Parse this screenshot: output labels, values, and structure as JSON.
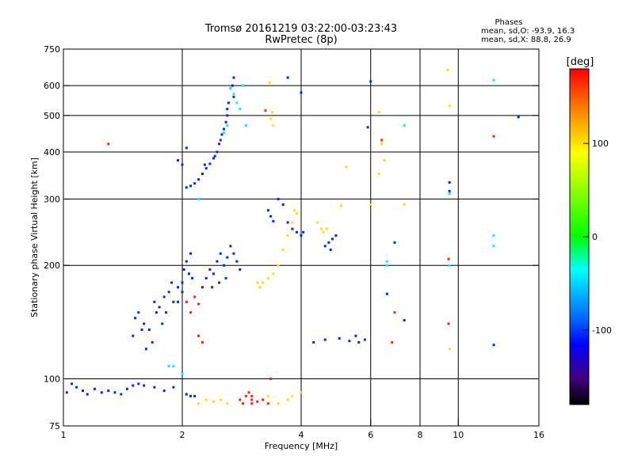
{
  "chart_data": {
    "type": "scatter",
    "title": "Tromsø 20161219 03:22:00-03:23:43",
    "subtitle": "RwPretec (8p)",
    "xlabel": "Frequency [MHz]",
    "ylabel": "Stationary phase Virtual Height [km]",
    "x_scale": "log",
    "y_scale": "log",
    "xlim": [
      1,
      16
    ],
    "ylim": [
      75,
      750
    ],
    "x_ticks": [
      1,
      2,
      4,
      6,
      8,
      10,
      16
    ],
    "x_tick_labels": [
      "1",
      "2",
      "4",
      "6",
      "8",
      "10",
      "16"
    ],
    "x_grid": [
      2,
      4,
      6,
      8,
      10
    ],
    "y_ticks": [
      75,
      100,
      200,
      300,
      400,
      500,
      600,
      750
    ],
    "y_tick_labels": [
      "75",
      "100",
      "200",
      "300",
      "400",
      "500",
      "600",
      "750"
    ],
    "y_grid": [
      100,
      200,
      300,
      400,
      500,
      600
    ],
    "grid": true,
    "legend_header": "Phases",
    "legend_lines": [
      "mean, sd,O: -93.9, 16.3",
      "mean, sd,X:  88.8, 26.9"
    ],
    "legend_position": "top-right",
    "colorbar": {
      "label": "[deg]",
      "range": [
        -180,
        180
      ],
      "ticks": [
        100,
        0,
        -100
      ],
      "tick_labels": [
        "100",
        "0",
        "-100"
      ],
      "colors": [
        "#ff0000",
        "#ff8000",
        "#ffff00",
        "#00ff00",
        "#00ffff",
        "#0080ff",
        "#0000ff",
        "#400080",
        "#000000"
      ]
    },
    "series": [
      {
        "color_phase_deg": -105,
        "points": [
          [
            1.02,
            92
          ],
          [
            1.05,
            97
          ],
          [
            1.08,
            95
          ],
          [
            1.12,
            93
          ],
          [
            1.15,
            91
          ],
          [
            1.2,
            94
          ],
          [
            1.25,
            92
          ],
          [
            1.3,
            93
          ],
          [
            1.35,
            92
          ],
          [
            1.4,
            91
          ],
          [
            1.45,
            94
          ],
          [
            1.5,
            96
          ],
          [
            1.55,
            97
          ],
          [
            1.6,
            96
          ],
          [
            1.7,
            95
          ],
          [
            1.8,
            93
          ],
          [
            1.9,
            95
          ],
          [
            2.05,
            91
          ],
          [
            2.1,
            90
          ],
          [
            2.15,
            90
          ],
          [
            1.5,
            130
          ],
          [
            1.52,
            145
          ],
          [
            1.55,
            150
          ],
          [
            1.6,
            140
          ],
          [
            1.65,
            135
          ],
          [
            1.7,
            160
          ],
          [
            1.72,
            150
          ],
          [
            1.75,
            155
          ],
          [
            1.8,
            165
          ],
          [
            1.85,
            170
          ],
          [
            1.9,
            160
          ],
          [
            1.95,
            175
          ],
          [
            2.0,
            180
          ],
          [
            2.02,
            195
          ],
          [
            2.05,
            205
          ],
          [
            2.08,
            190
          ],
          [
            2.1,
            215
          ],
          [
            2.12,
            185
          ],
          [
            2.0,
            170
          ],
          [
            1.95,
            160
          ],
          [
            1.88,
            180
          ],
          [
            1.82,
            150
          ],
          [
            1.78,
            140
          ],
          [
            1.68,
            125
          ],
          [
            1.62,
            120
          ],
          [
            1.58,
            135
          ],
          [
            2.25,
            175
          ],
          [
            2.3,
            185
          ],
          [
            2.35,
            195
          ],
          [
            2.4,
            190
          ],
          [
            2.45,
            205
          ],
          [
            2.5,
            215
          ],
          [
            2.55,
            200
          ],
          [
            2.6,
            210
          ],
          [
            2.65,
            225
          ],
          [
            2.7,
            215
          ],
          [
            2.75,
            205
          ],
          [
            2.8,
            195
          ],
          [
            2.58,
            185
          ],
          [
            2.48,
            180
          ],
          [
            2.38,
            175
          ],
          [
            2.05,
            322
          ],
          [
            2.1,
            325
          ],
          [
            2.15,
            330
          ],
          [
            2.2,
            338
          ],
          [
            2.25,
            350
          ],
          [
            2.3,
            362
          ],
          [
            2.35,
            372
          ],
          [
            2.4,
            385
          ],
          [
            2.45,
            400
          ],
          [
            2.5,
            430
          ],
          [
            2.55,
            460
          ],
          [
            2.6,
            500
          ],
          [
            2.62,
            540
          ],
          [
            2.65,
            590
          ],
          [
            2.7,
            630
          ],
          [
            2.68,
            600
          ],
          [
            2.58,
            480
          ],
          [
            2.48,
            420
          ],
          [
            2.42,
            390
          ],
          [
            2.52,
            445
          ],
          [
            2.28,
            370
          ],
          [
            2.6,
            520
          ],
          [
            2.7,
            560
          ],
          [
            1.95,
            380
          ],
          [
            2.0,
            370
          ],
          [
            2.05,
            410
          ],
          [
            3.3,
            280
          ],
          [
            3.35,
            270
          ],
          [
            3.4,
            262
          ],
          [
            3.5,
            300
          ],
          [
            3.6,
            290
          ],
          [
            3.7,
            260
          ],
          [
            3.8,
            250
          ],
          [
            3.9,
            245
          ],
          [
            4.0,
            240
          ],
          [
            4.05,
            245
          ],
          [
            4.6,
            225
          ],
          [
            4.7,
            230
          ],
          [
            4.75,
            220
          ],
          [
            4.8,
            235
          ],
          [
            4.9,
            240
          ],
          [
            4.3,
            125
          ],
          [
            4.6,
            127
          ],
          [
            5.0,
            128
          ],
          [
            5.3,
            126
          ],
          [
            5.6,
            125
          ],
          [
            5.8,
            127
          ],
          [
            5.5,
            130
          ],
          [
            7.3,
            143
          ],
          [
            9.5,
            332
          ],
          [
            9.5,
            315
          ],
          [
            12.3,
            123
          ],
          [
            14.2,
            495
          ],
          [
            6.9,
            230
          ],
          [
            6.6,
            168
          ],
          [
            5.9,
            465
          ],
          [
            4.0,
            575
          ],
          [
            3.7,
            630
          ],
          [
            6.0,
            615
          ]
        ]
      },
      {
        "color_phase_deg": -45,
        "points": [
          [
            2.65,
            590
          ],
          [
            2.7,
            570
          ],
          [
            2.75,
            540
          ],
          [
            2.8,
            520
          ],
          [
            2.85,
            600
          ],
          [
            2.6,
            470
          ],
          [
            2.55,
            450
          ],
          [
            2.9,
            470
          ],
          [
            1.9,
            108
          ],
          [
            2.0,
            103
          ],
          [
            6.6,
            205
          ],
          [
            6.6,
            200
          ],
          [
            9.5,
            200
          ],
          [
            12.3,
            240
          ],
          [
            12.3,
            225
          ],
          [
            7.3,
            470
          ],
          [
            12.3,
            620
          ],
          [
            9.5,
            310
          ],
          [
            2.2,
            300
          ],
          [
            1.85,
            108
          ]
        ]
      },
      {
        "color_phase_deg": 110,
        "points": [
          [
            3.2,
            180
          ],
          [
            3.3,
            185
          ],
          [
            3.4,
            190
          ],
          [
            3.5,
            200
          ],
          [
            3.15,
            175
          ],
          [
            3.1,
            180
          ],
          [
            3.6,
            220
          ],
          [
            3.7,
            240
          ],
          [
            3.8,
            260
          ],
          [
            3.85,
            280
          ],
          [
            3.9,
            275
          ],
          [
            4.5,
            250
          ],
          [
            4.55,
            245
          ],
          [
            4.65,
            250
          ],
          [
            4.4,
            260
          ],
          [
            5.05,
            288
          ],
          [
            3.35,
            490
          ],
          [
            3.38,
            510
          ],
          [
            3.4,
            470
          ],
          [
            3.33,
            610
          ],
          [
            2.2,
            86
          ],
          [
            2.3,
            88
          ],
          [
            2.4,
            87
          ],
          [
            2.5,
            88
          ],
          [
            2.6,
            86
          ],
          [
            3.5,
            86
          ],
          [
            3.7,
            88
          ],
          [
            3.8,
            90
          ],
          [
            4.0,
            92
          ],
          [
            5.2,
            365
          ],
          [
            6.3,
            510
          ],
          [
            6.4,
            420
          ],
          [
            6.5,
            380
          ],
          [
            6.3,
            350
          ],
          [
            9.4,
            660
          ],
          [
            9.5,
            530
          ],
          [
            9.5,
            120
          ],
          [
            7.3,
            290
          ],
          [
            6.0,
            290
          ],
          [
            3.3,
            90
          ]
        ]
      },
      {
        "color_phase_deg": 170,
        "points": [
          [
            2.8,
            88
          ],
          [
            2.9,
            90
          ],
          [
            3.0,
            88
          ],
          [
            3.1,
            87
          ],
          [
            3.2,
            88
          ],
          [
            3.3,
            86
          ],
          [
            3.0,
            90
          ],
          [
            2.95,
            92
          ],
          [
            2.1,
            150
          ],
          [
            2.2,
            158
          ],
          [
            2.05,
            160
          ],
          [
            2.15,
            165
          ],
          [
            1.3,
            420
          ],
          [
            2.2,
            130
          ],
          [
            2.25,
            125
          ],
          [
            3.25,
            515
          ],
          [
            6.4,
            430
          ],
          [
            9.45,
            208
          ],
          [
            9.45,
            140
          ],
          [
            12.3,
            440
          ],
          [
            6.8,
            125
          ],
          [
            6.9,
            150
          ],
          [
            3.0,
            86
          ],
          [
            2.85,
            86
          ],
          [
            3.35,
            100
          ]
        ]
      }
    ]
  }
}
